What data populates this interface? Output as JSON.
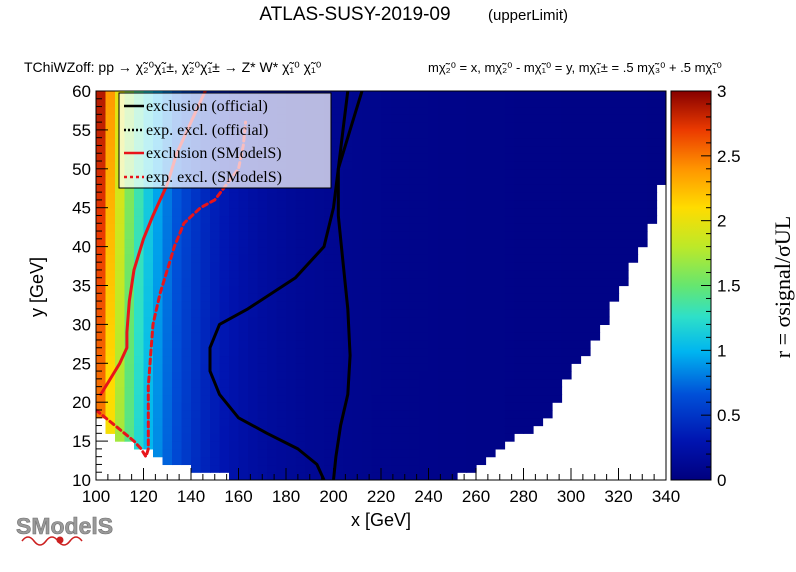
{
  "header": {
    "title": "ATLAS-SUSY-2019-09",
    "title_tag": "(upperLimit)"
  },
  "subtitle": {
    "process": "TChiWZoff: pp → χ̃₂⁰χ̃₁±, χ̃₂⁰χ̃₁± → Z* W* χ̃₁⁰ χ̃₁⁰",
    "mass_definition": "mχ̃₂⁰ = x, mχ̃₂⁰ - mχ̃₁⁰ = y, mχ̃₁± = .5 mχ̃₃⁰ + .5 mχ̃₁⁰"
  },
  "logo": {
    "text": "SModelS"
  },
  "colors": {
    "exclusion_line": "#000000",
    "smodels_line": "#e8141a",
    "legend_bg": "#ffffff",
    "missing_bin": "#ffffff"
  },
  "chart_data": {
    "type": "heatmap",
    "xlabel": "x [GeV]",
    "ylabel": "y [GeV]",
    "zlabel": "r = σsignal/σUL",
    "xlim": [
      100,
      340
    ],
    "ylim": [
      10,
      60
    ],
    "zlim": [
      0,
      3
    ],
    "xticks": [
      100,
      120,
      140,
      160,
      180,
      200,
      220,
      240,
      260,
      280,
      300,
      320,
      340
    ],
    "yticks": [
      10,
      15,
      20,
      25,
      30,
      35,
      40,
      45,
      50,
      55,
      60
    ],
    "zticks": [
      0,
      0.5,
      1,
      1.5,
      2,
      2.5,
      3
    ],
    "colorbar": "right",
    "legend_position": "top-left",
    "legend": [
      {
        "label": "exclusion (official)",
        "color": "#000000",
        "style": "solid"
      },
      {
        "label": "exp. excl. (official)",
        "color": "#000000",
        "style": "dotted"
      },
      {
        "label": "exclusion (SModelS)",
        "color": "#e8141a",
        "style": "solid"
      },
      {
        "label": "exp. excl. (SModelS)",
        "color": "#e8141a",
        "style": "dashed"
      }
    ],
    "grid_cell": {
      "dx": 4,
      "dy": 1
    },
    "coverage_boundary": [
      [
        100,
        19
      ],
      [
        104,
        17
      ],
      [
        110,
        15
      ],
      [
        120,
        14
      ],
      [
        125,
        13
      ],
      [
        130,
        12
      ],
      [
        150,
        11
      ],
      [
        160,
        10
      ],
      [
        250,
        10
      ],
      [
        256,
        11
      ],
      [
        265,
        13
      ],
      [
        280,
        16
      ],
      [
        290,
        18
      ],
      [
        300,
        24
      ],
      [
        310,
        28
      ],
      [
        320,
        34
      ],
      [
        330,
        40
      ],
      [
        335,
        44
      ],
      [
        340,
        50
      ],
      [
        340,
        60
      ]
    ],
    "heatmap_model": "r rises toward small x; approx. 3.0 near (100, 60), 1.5 at x≈120, 1.0 at x≈130, 0.5 at x≈155, below 0.2 for x≥220",
    "series": [
      {
        "name": "exclusion (official)",
        "points": [
          [
            200,
            10
          ],
          [
            201,
            13
          ],
          [
            203,
            17
          ],
          [
            206,
            21
          ],
          [
            207,
            26
          ],
          [
            206,
            32
          ],
          [
            204,
            38
          ],
          [
            202,
            44
          ],
          [
            202,
            50
          ],
          [
            204,
            55
          ],
          [
            206,
            60
          ]
        ]
      },
      {
        "name": "exclusion (official)",
        "points": [
          [
            196,
            10
          ],
          [
            193,
            12
          ],
          [
            185,
            14
          ],
          [
            172,
            16
          ],
          [
            160,
            18
          ],
          [
            152,
            21
          ],
          [
            148,
            24
          ],
          [
            148,
            27
          ],
          [
            152,
            30
          ],
          [
            164,
            32
          ],
          [
            184,
            36
          ],
          [
            196,
            40
          ],
          [
            200,
            45
          ],
          [
            202,
            50
          ],
          [
            207,
            55
          ],
          [
            212,
            60
          ]
        ]
      },
      {
        "name": "exclusion (SModelS)",
        "points": [
          [
            102,
            21
          ],
          [
            106,
            23
          ],
          [
            110,
            25
          ],
          [
            113,
            27
          ],
          [
            113,
            29
          ],
          [
            114,
            33
          ],
          [
            116,
            37
          ],
          [
            120,
            41
          ],
          [
            124,
            44
          ],
          [
            127,
            46
          ],
          [
            130,
            48
          ],
          [
            132,
            50
          ],
          [
            134,
            52
          ],
          [
            137,
            54
          ],
          [
            140,
            56
          ],
          [
            143,
            58
          ],
          [
            146,
            60
          ]
        ]
      },
      {
        "name": "exp. excl. (SModelS)",
        "points": [
          [
            100,
            19
          ],
          [
            104,
            18
          ],
          [
            108,
            17
          ],
          [
            112,
            16
          ],
          [
            116,
            15
          ],
          [
            119,
            14
          ],
          [
            121,
            13
          ],
          [
            122,
            14
          ],
          [
            122,
            18
          ],
          [
            122,
            22
          ],
          [
            123,
            26
          ],
          [
            124,
            30
          ],
          [
            127,
            34
          ],
          [
            130,
            37
          ],
          [
            133,
            40
          ],
          [
            137,
            43
          ],
          [
            144,
            45
          ],
          [
            150,
            46
          ],
          [
            155,
            48
          ],
          [
            160,
            50
          ],
          [
            162,
            53
          ],
          [
            163,
            56
          ]
        ]
      }
    ]
  }
}
